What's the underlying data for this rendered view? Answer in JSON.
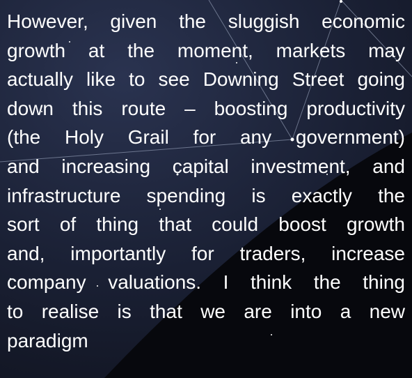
{
  "paragraph": {
    "lines": [
      "However, given the sluggish economic",
      "growth at the moment, markets may",
      "actually like to see Downing Street going",
      "down this route – boosting productivity",
      "(the Holy Grail for any government)",
      "and increasing capital investment, and",
      "infrastructure spending is exactly the",
      "sort of thing that could boost growth",
      "and, importantly for traders, increase",
      "company valuations. I think the thing",
      "to realise is that we are into a new",
      "paradigm"
    ]
  }
}
